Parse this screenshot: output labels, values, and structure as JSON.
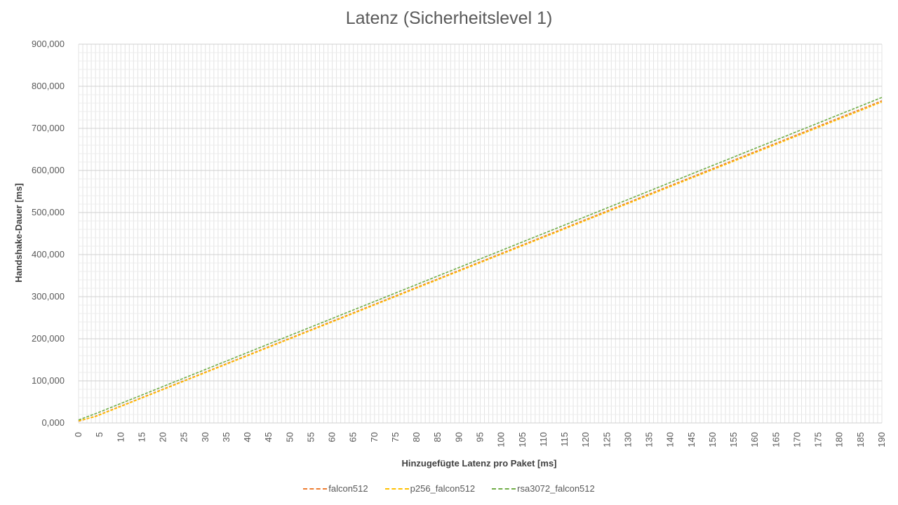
{
  "chart_data": {
    "type": "line",
    "title": "Latenz (Sicherheitslevel 1)",
    "xlabel": "Hinzugefügte Latenz pro Paket [ms]",
    "ylabel": "Handshake-Dauer [ms]",
    "x": [
      0,
      1,
      2,
      3,
      4,
      5,
      6,
      7,
      8,
      9,
      10,
      11,
      12,
      13,
      14,
      15,
      16,
      17,
      18,
      19,
      20,
      21,
      22,
      23,
      24,
      25,
      26,
      27,
      28,
      29,
      30,
      31,
      32,
      33,
      34,
      35,
      36,
      37,
      38,
      39,
      40,
      41,
      42,
      43,
      44,
      45,
      46,
      47,
      48,
      49,
      50,
      51,
      52,
      53,
      54,
      55,
      56,
      57,
      58,
      59,
      60,
      61,
      62,
      63,
      64,
      65,
      66,
      67,
      68,
      69,
      70,
      71,
      72,
      73,
      74,
      75,
      76,
      77,
      78,
      79,
      80,
      81,
      82,
      83,
      84,
      85,
      86,
      87,
      88,
      89,
      90,
      91,
      92,
      93,
      94,
      95,
      96,
      97,
      98,
      99,
      100,
      101,
      102,
      103,
      104,
      105,
      106,
      107,
      108,
      109,
      110,
      111,
      112,
      113,
      114,
      115,
      116,
      117,
      118,
      119,
      120,
      121,
      122,
      123,
      124,
      125,
      126,
      127,
      128,
      129,
      130,
      131,
      132,
      133,
      134,
      135,
      136,
      137,
      138,
      139,
      140,
      141,
      142,
      143,
      144,
      145,
      146,
      147,
      148,
      149,
      150,
      151,
      152,
      153,
      154,
      155,
      156,
      157,
      158,
      159,
      160,
      161,
      162,
      163,
      164,
      165,
      166,
      167,
      168,
      169,
      170,
      171,
      172,
      173,
      174,
      175,
      176,
      177,
      178,
      179,
      180,
      181,
      182,
      183,
      184,
      185,
      186,
      187,
      188,
      189,
      190
    ],
    "series": [
      {
        "name": "falcon512",
        "color": "#ED7D31",
        "start": 4,
        "slope": 4.03,
        "bump_at": 4,
        "bump_value": 16
      },
      {
        "name": "p256_falcon512",
        "color": "#FFC000",
        "start": 5,
        "slope": 4.02,
        "bump_at": 4,
        "bump_value": 15
      },
      {
        "name": "rsa3072_falcon512",
        "color": "#70AD47",
        "start": 7,
        "slope": 4.04,
        "bump_at": 4,
        "bump_value": 22
      }
    ],
    "ylim": [
      0,
      900
    ],
    "yticks": [
      "0,000",
      "100,000",
      "200,000",
      "300,000",
      "400,000",
      "500,000",
      "600,000",
      "700,000",
      "800,000",
      "900,000"
    ],
    "xtick_step": 5,
    "grid": true,
    "legend": "bottom"
  }
}
